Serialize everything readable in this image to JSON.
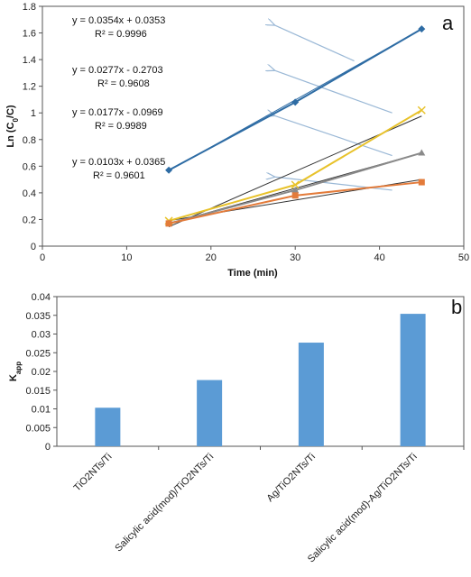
{
  "chart_data": [
    {
      "panel": "a",
      "type": "scatter",
      "xlabel": "Time (min)",
      "ylabel": "Ln (C0/C)",
      "xlim": [
        0,
        50
      ],
      "ylim": [
        0,
        1.8
      ],
      "xticks": [
        "0",
        "10",
        "20",
        "30",
        "40",
        "50"
      ],
      "yticks": [
        "0",
        "0.2",
        "0.4",
        "0.6",
        "0.8",
        "1",
        "1.2",
        "1.4",
        "1.6",
        "1.8"
      ],
      "grid": false,
      "series": [
        {
          "color": "#2e6ca4",
          "marker": "diamond",
          "x": [
            15,
            30,
            45
          ],
          "y": [
            0.57,
            1.08,
            1.63
          ]
        },
        {
          "color": "#e8c22a",
          "marker": "x",
          "x": [
            15,
            30,
            45
          ],
          "y": [
            0.19,
            0.46,
            1.02
          ]
        },
        {
          "color": "#8a8a8a",
          "marker": "triangle",
          "x": [
            15,
            30,
            45
          ],
          "y": [
            0.17,
            0.42,
            0.7
          ]
        },
        {
          "color": "#e37b3a",
          "marker": "square",
          "x": [
            15,
            30,
            45
          ],
          "y": [
            0.17,
            0.38,
            0.48
          ]
        }
      ],
      "trendlines": [
        {
          "equation": "y = 0.0354x + 0.0353",
          "r2": "R² = 0.9996",
          "slope": 0.0354,
          "intercept": 0.0353,
          "color": "#2e6ca4"
        },
        {
          "equation": "y = 0.0277x - 0.2703",
          "r2": "R² = 0.9608",
          "slope": 0.0277,
          "intercept": -0.2703,
          "color": "#333333"
        },
        {
          "equation": "y = 0.0177x - 0.0969",
          "r2": "R² = 0.9989",
          "slope": 0.0177,
          "intercept": -0.0969,
          "color": "#333333"
        },
        {
          "equation": "y = 0.0103x + 0.0365",
          "r2": "R² = 0.9601",
          "slope": 0.0103,
          "intercept": 0.0365,
          "color": "#333333"
        }
      ],
      "annotation_arrow_color": "#9ab8d6"
    },
    {
      "panel": "b",
      "type": "bar",
      "ylabel": "K app",
      "ylim": [
        0,
        0.04
      ],
      "yticks": [
        "0",
        "0.005",
        "0.01",
        "0.015",
        "0.02",
        "0.025",
        "0.03",
        "0.035",
        "0.04"
      ],
      "grid": false,
      "categories": [
        "TiO2NTs/Ti",
        "Salicylic acid(mod)/TiO2NTs/Ti",
        "Ag/TiO2NTs/Ti",
        "Salicylic acid(mod)-Ag/TiO2NTs/Ti"
      ],
      "values": [
        0.0103,
        0.0177,
        0.0277,
        0.0354
      ],
      "bar_color": "#5b9bd5"
    }
  ],
  "panel_labels": {
    "a": "a",
    "b": "b"
  }
}
